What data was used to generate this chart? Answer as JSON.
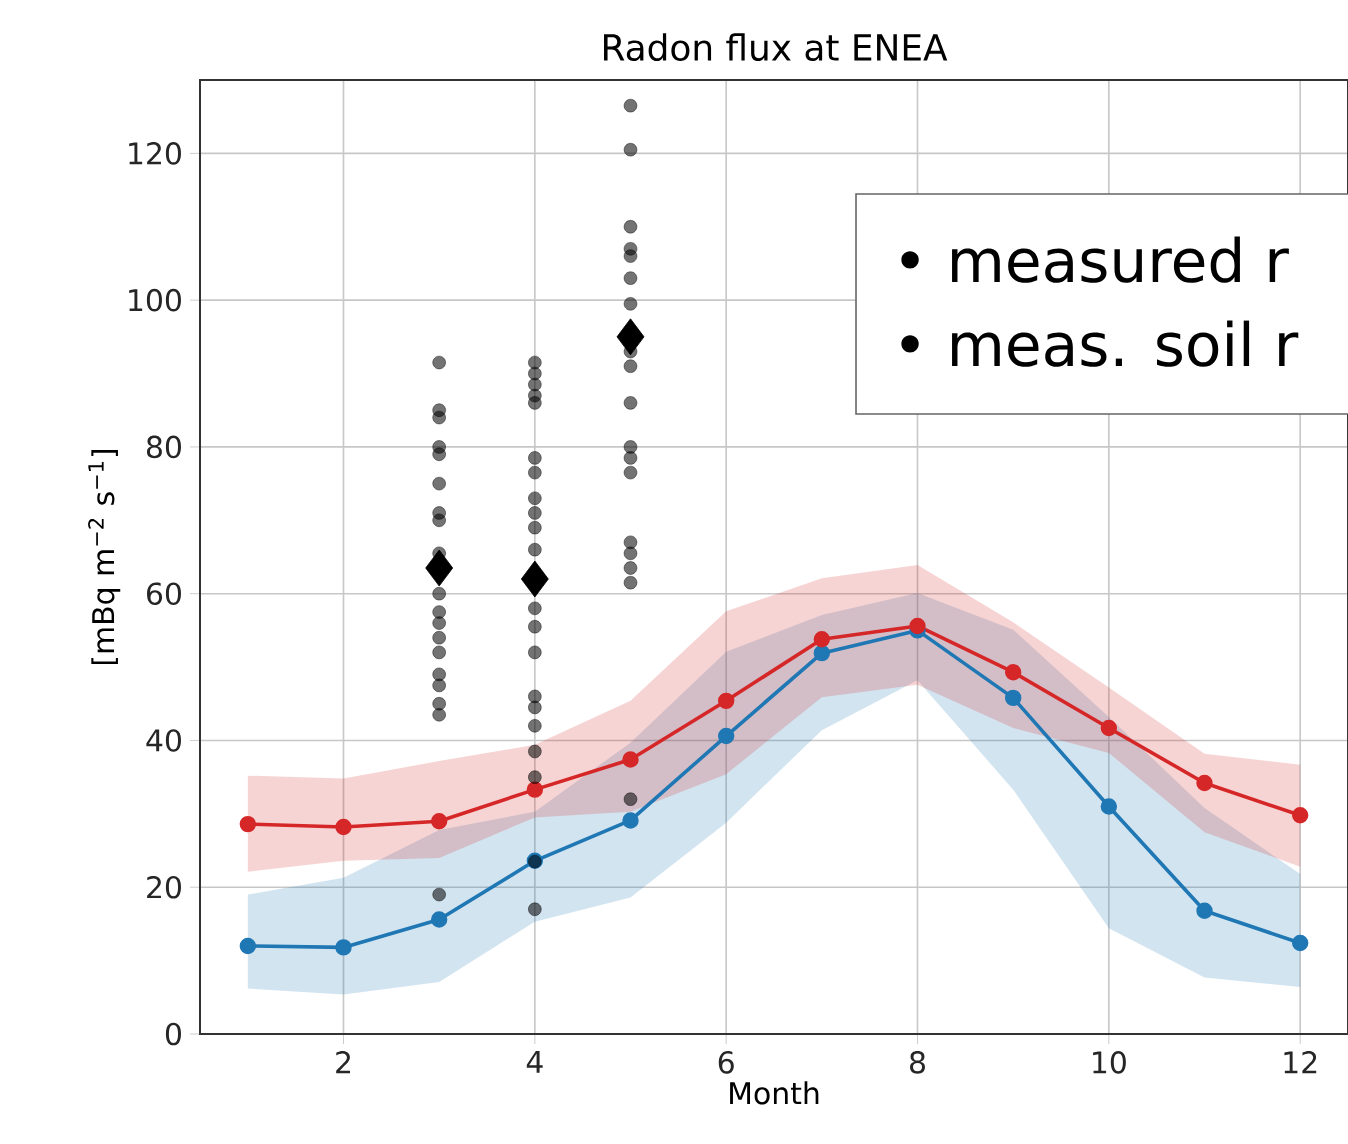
{
  "chart_data": {
    "type": "line",
    "title": "Radon flux at ENEA",
    "xlabel": "Month",
    "ylabel": "[mBq m$^{−2}$ s$^{−1}$]",
    "xlim": [
      0.5,
      12.5
    ],
    "ylim": [
      0,
      130
    ],
    "xticks": [
      2,
      4,
      6,
      8,
      10,
      12
    ],
    "yticks": [
      0,
      20,
      40,
      60,
      80,
      100,
      120
    ],
    "grid": true,
    "marker": "circle",
    "series": [
      {
        "color": "#1f77b4",
        "x": [
          1,
          2,
          3,
          4,
          5,
          6,
          7,
          8,
          9,
          10,
          11,
          12
        ],
        "values": [
          12.0,
          11.8,
          15.6,
          23.6,
          29.1,
          40.6,
          51.9,
          55.0,
          45.8,
          31.0,
          16.8,
          12.4
        ],
        "lower": [
          6.2,
          5.4,
          7.1,
          15.3,
          18.6,
          28.8,
          41.4,
          48.2,
          33.3,
          14.4,
          7.7,
          6.4
        ],
        "upper": [
          19.0,
          21.3,
          27.8,
          30.3,
          39.7,
          52.1,
          57.1,
          60.1,
          55.1,
          43.2,
          30.8,
          21.8
        ]
      },
      {
        "color": "#d62728",
        "x": [
          1,
          2,
          3,
          4,
          5,
          6,
          7,
          8,
          9,
          10,
          11,
          12
        ],
        "values": [
          28.6,
          28.2,
          29.0,
          33.3,
          37.4,
          45.4,
          53.8,
          55.6,
          49.3,
          41.7,
          34.2,
          29.8
        ],
        "lower": [
          22.1,
          23.6,
          24.0,
          29.5,
          30.3,
          35.4,
          45.9,
          47.6,
          41.7,
          38.3,
          27.5,
          22.8
        ],
        "upper": [
          35.2,
          34.8,
          37.2,
          39.4,
          45.4,
          57.6,
          62.1,
          63.9,
          56.1,
          47.2,
          38.2,
          36.7
        ]
      },
      {
        "type": "scatter",
        "color": "#000000",
        "x": [
          3,
          3,
          3,
          3,
          3,
          3,
          3,
          3,
          3,
          3,
          3,
          3,
          3,
          3,
          3,
          3,
          3,
          3,
          3,
          4,
          4,
          4,
          4,
          4,
          4,
          4,
          4,
          4,
          4,
          4,
          4,
          4,
          4,
          4,
          4,
          4,
          4,
          4,
          4,
          4,
          5,
          5,
          5,
          5,
          5,
          5,
          5,
          5,
          5,
          5,
          5,
          5,
          5,
          5,
          5,
          5,
          5,
          5
        ],
        "values": [
          91.5,
          85,
          84,
          80,
          79,
          75,
          71,
          70,
          65.5,
          60,
          57.5,
          56,
          54,
          52,
          49,
          47.5,
          45,
          43.5,
          19,
          91.5,
          90,
          88.5,
          87,
          86,
          78.5,
          76.5,
          73,
          71,
          69,
          66,
          58,
          55.5,
          52,
          46,
          44.5,
          42,
          38.5,
          35,
          23.5,
          17,
          126.5,
          120.5,
          110,
          107,
          106,
          103,
          99.5,
          93,
          91,
          86,
          80,
          78.5,
          76.5,
          67,
          65.5,
          63.5,
          61.5,
          32
        ]
      },
      {
        "type": "scatter",
        "color": "#000000",
        "marker": "diamond",
        "x": [
          3,
          4,
          5
        ],
        "values": [
          63.5,
          62,
          95
        ]
      }
    ],
    "annotations": [
      "• measured r",
      "• meas. soil r"
    ]
  }
}
